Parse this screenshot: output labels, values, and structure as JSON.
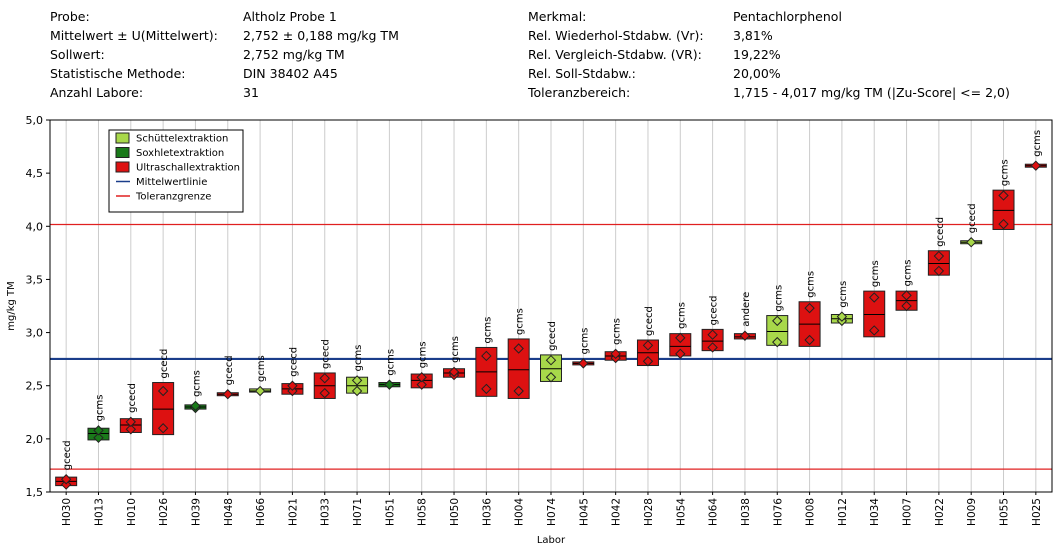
{
  "header": {
    "left": [
      {
        "key": "Probe:",
        "value": "Altholz Probe 1"
      },
      {
        "key": "Mittelwert ± U(Mittelwert):",
        "value": "2,752 ± 0,188 mg/kg TM"
      },
      {
        "key": "Sollwert:",
        "value": "2,752 mg/kg TM"
      },
      {
        "key": "Statistische Methode:",
        "value": "DIN 38402 A45"
      },
      {
        "key": "Anzahl Labore:",
        "value": "31"
      }
    ],
    "right": [
      {
        "key": "Merkmal:",
        "value": "Pentachlorphenol"
      },
      {
        "key": "Rel. Wiederhol-Stdabw. (Vr):",
        "value": "3,81%"
      },
      {
        "key": "Rel. Vergleich-Stdabw. (VR):",
        "value": "19,22%"
      },
      {
        "key": "Rel. Soll-Stdabw.:",
        "value": "20,00%"
      },
      {
        "key": "Toleranzbereich:",
        "value": "1,715 - 4,017 mg/kg TM (|Zu-Score| <= 2,0)"
      }
    ]
  },
  "colors": {
    "schuettel": "#a8d84a",
    "soxhlet": "#1a7a1a",
    "ultraschall": "#dd1111",
    "mittelwert": "#1a3d8a",
    "toleranz": "#e02020",
    "grid": "#cccccc"
  },
  "chart_data": {
    "type": "box",
    "ylabel": "mg/kg TM",
    "xlabel": "Labor",
    "ylim": [
      1.5,
      5.0
    ],
    "yticks": [
      "1,5",
      "2,0",
      "2,5",
      "3,0",
      "3,5",
      "4,0",
      "4,5",
      "5,0"
    ],
    "mean_line": 2.752,
    "tolerance": [
      1.715,
      4.017
    ],
    "legend": [
      {
        "key": "schuettel",
        "label": "Schüttelextraktion",
        "kind": "box"
      },
      {
        "key": "soxhlet",
        "label": "Soxhletextraktion",
        "kind": "box"
      },
      {
        "key": "ultraschall",
        "label": "Ultraschallextraktion",
        "kind": "box"
      },
      {
        "key": "mittelwert",
        "label": "Mittelwertlinie",
        "kind": "line"
      },
      {
        "key": "toleranz",
        "label": "Toleranzgrenze",
        "kind": "line"
      }
    ],
    "labs": [
      {
        "id": "H030",
        "method": "gcecd",
        "ext": "ultraschall",
        "lo": 1.56,
        "hi": 1.64,
        "mean": 1.6,
        "pts": [
          1.57,
          1.62
        ]
      },
      {
        "id": "H013",
        "method": "gcms",
        "ext": "soxhlet",
        "lo": 1.99,
        "hi": 2.1,
        "mean": 2.05,
        "pts": [
          2.01,
          2.08
        ]
      },
      {
        "id": "H010",
        "method": "gcecd",
        "ext": "ultraschall",
        "lo": 2.06,
        "hi": 2.19,
        "mean": 2.13,
        "pts": [
          2.09,
          2.16
        ]
      },
      {
        "id": "H026",
        "method": "gcecd",
        "ext": "ultraschall",
        "lo": 2.04,
        "hi": 2.53,
        "mean": 2.28,
        "pts": [
          2.1,
          2.45
        ]
      },
      {
        "id": "H039",
        "method": "gcms",
        "ext": "soxhlet",
        "lo": 2.28,
        "hi": 2.32,
        "mean": 2.3,
        "pts": [
          2.29,
          2.31
        ]
      },
      {
        "id": "H048",
        "method": "gcecd",
        "ext": "ultraschall",
        "lo": 2.41,
        "hi": 2.43,
        "mean": 2.42,
        "pts": [
          2.42
        ]
      },
      {
        "id": "H066",
        "method": "gcms",
        "ext": "schuettel",
        "lo": 2.44,
        "hi": 2.47,
        "mean": 2.45,
        "pts": [
          2.45
        ]
      },
      {
        "id": "H021",
        "method": "gcecd",
        "ext": "ultraschall",
        "lo": 2.42,
        "hi": 2.52,
        "mean": 2.47,
        "pts": [
          2.45,
          2.5
        ]
      },
      {
        "id": "H033",
        "method": "gcecd",
        "ext": "ultraschall",
        "lo": 2.38,
        "hi": 2.62,
        "mean": 2.5,
        "pts": [
          2.43,
          2.57
        ]
      },
      {
        "id": "H071",
        "method": "gcms",
        "ext": "schuettel",
        "lo": 2.43,
        "hi": 2.58,
        "mean": 2.5,
        "pts": [
          2.45,
          2.55
        ]
      },
      {
        "id": "H051",
        "method": "gcms",
        "ext": "soxhlet",
        "lo": 2.49,
        "hi": 2.53,
        "mean": 2.51,
        "pts": [
          2.51
        ]
      },
      {
        "id": "H058",
        "method": "gcms",
        "ext": "ultraschall",
        "lo": 2.48,
        "hi": 2.61,
        "mean": 2.55,
        "pts": [
          2.51,
          2.58
        ]
      },
      {
        "id": "H050",
        "method": "gcms",
        "ext": "ultraschall",
        "lo": 2.58,
        "hi": 2.66,
        "mean": 2.62,
        "pts": [
          2.6,
          2.63
        ]
      },
      {
        "id": "H036",
        "method": "gcms",
        "ext": "ultraschall",
        "lo": 2.4,
        "hi": 2.86,
        "mean": 2.63,
        "pts": [
          2.47,
          2.78
        ]
      },
      {
        "id": "H004",
        "method": "gcms",
        "ext": "ultraschall",
        "lo": 2.38,
        "hi": 2.94,
        "mean": 2.65,
        "pts": [
          2.45,
          2.85
        ]
      },
      {
        "id": "H074",
        "method": "gcecd",
        "ext": "schuettel",
        "lo": 2.54,
        "hi": 2.79,
        "mean": 2.66,
        "pts": [
          2.58,
          2.74
        ]
      },
      {
        "id": "H045",
        "method": "gcms",
        "ext": "ultraschall",
        "lo": 2.7,
        "hi": 2.72,
        "mean": 2.71,
        "pts": [
          2.71
        ]
      },
      {
        "id": "H042",
        "method": "gcms",
        "ext": "ultraschall",
        "lo": 2.74,
        "hi": 2.82,
        "mean": 2.78,
        "pts": [
          2.76,
          2.8
        ]
      },
      {
        "id": "H028",
        "method": "gcecd",
        "ext": "ultraschall",
        "lo": 2.69,
        "hi": 2.93,
        "mean": 2.81,
        "pts": [
          2.73,
          2.88
        ]
      },
      {
        "id": "H054",
        "method": "gcms",
        "ext": "ultraschall",
        "lo": 2.78,
        "hi": 2.99,
        "mean": 2.87,
        "pts": [
          2.8,
          2.95
        ]
      },
      {
        "id": "H064",
        "method": "gcecd",
        "ext": "ultraschall",
        "lo": 2.83,
        "hi": 3.03,
        "mean": 2.92,
        "pts": [
          2.86,
          2.98
        ]
      },
      {
        "id": "H038",
        "method": "andere",
        "ext": "ultraschall",
        "lo": 2.94,
        "hi": 2.99,
        "mean": 2.96,
        "pts": [
          2.97
        ]
      },
      {
        "id": "H076",
        "method": "gcms",
        "ext": "schuettel",
        "lo": 2.88,
        "hi": 3.16,
        "mean": 3.01,
        "pts": [
          2.91,
          3.11
        ]
      },
      {
        "id": "H008",
        "method": "gcms",
        "ext": "ultraschall",
        "lo": 2.87,
        "hi": 3.29,
        "mean": 3.08,
        "pts": [
          2.93,
          3.23
        ]
      },
      {
        "id": "H012",
        "method": "gcms",
        "ext": "schuettel",
        "lo": 3.09,
        "hi": 3.17,
        "mean": 3.13,
        "pts": [
          3.11,
          3.15
        ]
      },
      {
        "id": "H034",
        "method": "gcms",
        "ext": "ultraschall",
        "lo": 2.96,
        "hi": 3.39,
        "mean": 3.17,
        "pts": [
          3.02,
          3.33
        ]
      },
      {
        "id": "H007",
        "method": "gcms",
        "ext": "ultraschall",
        "lo": 3.21,
        "hi": 3.39,
        "mean": 3.3,
        "pts": [
          3.25,
          3.35
        ]
      },
      {
        "id": "H022",
        "method": "gcecd",
        "ext": "ultraschall",
        "lo": 3.54,
        "hi": 3.77,
        "mean": 3.65,
        "pts": [
          3.58,
          3.72
        ]
      },
      {
        "id": "H009",
        "method": "gcecd",
        "ext": "schuettel",
        "lo": 3.84,
        "hi": 3.86,
        "mean": 3.85,
        "pts": [
          3.85
        ]
      },
      {
        "id": "H055",
        "method": "gcms",
        "ext": "ultraschall",
        "lo": 3.97,
        "hi": 4.34,
        "mean": 4.15,
        "pts": [
          4.02,
          4.29
        ]
      },
      {
        "id": "H025",
        "method": "gcms",
        "ext": "ultraschall",
        "lo": 4.56,
        "hi": 4.58,
        "mean": 4.57,
        "pts": [
          4.57
        ]
      }
    ]
  }
}
